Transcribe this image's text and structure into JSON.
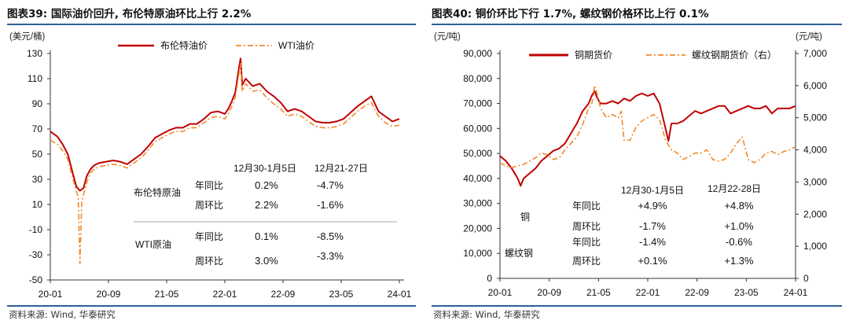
{
  "left": {
    "title": "图表39:  国际油价回升, 布伦特原油环比上行 2.2%",
    "unit": "(美元/桶)",
    "source": "资料来源: Wind, 华泰研究",
    "table": {
      "headers": [
        "12月30-1月5日",
        "12月21-27日"
      ],
      "rows": [
        {
          "group": "布伦特原油",
          "label": "年同比",
          "v1": "0.2%",
          "v2": "-4.7%"
        },
        {
          "group": "",
          "label": "周环比",
          "v1": "2.2%",
          "v2": "-1.6%"
        },
        {
          "group": "WTI原油",
          "label": "年同比",
          "v1": "0.1%",
          "v2": "-8.5%"
        },
        {
          "group": "",
          "label": "周环比",
          "v1": "3.0%",
          "v2": "-3.3%"
        }
      ]
    },
    "chart_data": {
      "type": "line",
      "x_ticks": [
        "20-01",
        "20-09",
        "21-05",
        "22-01",
        "22-09",
        "23-05",
        "24-01"
      ],
      "x_range": [
        "2020-01",
        "2024-01"
      ],
      "y_ticks": [
        "130",
        "110",
        "90",
        "70",
        "50",
        "30",
        "10",
        "-10",
        "-30",
        "-50"
      ],
      "ylim": [
        -50,
        130
      ],
      "legend_position": "top",
      "series": [
        {
          "name": "布伦特油价",
          "color": "#c00000",
          "style": "solid",
          "x": [
            0,
            0.02,
            0.035,
            0.05,
            0.065,
            0.075,
            0.085,
            0.095,
            0.105,
            0.115,
            0.125,
            0.14,
            0.16,
            0.18,
            0.2,
            0.22,
            0.24,
            0.26,
            0.28,
            0.3,
            0.32,
            0.34,
            0.36,
            0.38,
            0.4,
            0.42,
            0.44,
            0.46,
            0.48,
            0.5,
            0.51,
            0.52,
            0.53,
            0.54,
            0.545,
            0.55,
            0.56,
            0.58,
            0.6,
            0.62,
            0.64,
            0.66,
            0.68,
            0.7,
            0.72,
            0.74,
            0.76,
            0.78,
            0.8,
            0.82,
            0.84,
            0.86,
            0.88,
            0.9,
            0.92,
            0.94,
            0.96,
            0.98,
            1.0
          ],
          "y": [
            68,
            64,
            58,
            50,
            34,
            24,
            21,
            23,
            33,
            38,
            41,
            43,
            44,
            45,
            44,
            42,
            46,
            50,
            56,
            63,
            66,
            69,
            71,
            71,
            74,
            74,
            78,
            83,
            84,
            82,
            86,
            92,
            99,
            118,
            126,
            105,
            110,
            104,
            106,
            100,
            96,
            91,
            84,
            86,
            84,
            80,
            76,
            75,
            75,
            76,
            78,
            83,
            88,
            92,
            96,
            84,
            80,
            76,
            78
          ]
        },
        {
          "name": "WTI油价",
          "color": "#f28a2c",
          "style": "dashdot",
          "x": [
            0,
            0.02,
            0.035,
            0.05,
            0.065,
            0.075,
            0.08,
            0.085,
            0.09,
            0.095,
            0.105,
            0.115,
            0.125,
            0.14,
            0.16,
            0.18,
            0.2,
            0.22,
            0.24,
            0.26,
            0.28,
            0.3,
            0.32,
            0.34,
            0.36,
            0.38,
            0.4,
            0.42,
            0.44,
            0.46,
            0.48,
            0.5,
            0.51,
            0.52,
            0.53,
            0.54,
            0.545,
            0.55,
            0.56,
            0.58,
            0.6,
            0.62,
            0.64,
            0.66,
            0.68,
            0.7,
            0.72,
            0.74,
            0.76,
            0.78,
            0.8,
            0.82,
            0.84,
            0.86,
            0.88,
            0.9,
            0.92,
            0.94,
            0.96,
            0.98,
            1.0
          ],
          "y": [
            61,
            58,
            53,
            46,
            30,
            20,
            16,
            -37,
            12,
            18,
            28,
            35,
            38,
            40,
            41,
            42,
            41,
            39,
            43,
            47,
            53,
            60,
            63,
            66,
            68,
            68,
            71,
            71,
            75,
            79,
            80,
            78,
            82,
            88,
            95,
            113,
            122,
            100,
            106,
            100,
            101,
            95,
            90,
            86,
            80,
            82,
            80,
            76,
            72,
            71,
            71,
            72,
            74,
            79,
            84,
            88,
            91,
            80,
            75,
            72,
            73
          ]
        }
      ]
    }
  },
  "right": {
    "title": "图表40:  铜价环比下行 1.7%, 螺纹钢价格环比上行 0.1%",
    "unit_left": "(元/吨)",
    "unit_right": "(元/吨)",
    "source": "资料来源: Wind, 华泰研究",
    "table": {
      "headers": [
        "12月30-1月5日",
        "12月22-28日"
      ],
      "rows": [
        {
          "group": "铜",
          "label": "年同比",
          "v1": "+4.9%",
          "v2": "+4.8%"
        },
        {
          "group": "",
          "label": "周环比",
          "v1": "-1.7%",
          "v2": "+1.0%"
        },
        {
          "group": "螺纹钢",
          "label": "年同比",
          "v1": "-1.4%",
          "v2": "-0.6%"
        },
        {
          "group": "",
          "label": "周环比",
          "v1": "+0.1%",
          "v2": "+1.3%"
        }
      ]
    },
    "chart_data": {
      "type": "line",
      "x_ticks": [
        "20-01",
        "20-09",
        "21-05",
        "22-01",
        "22-09",
        "23-05",
        "24-01"
      ],
      "x_range": [
        "2020-01",
        "2024-01"
      ],
      "y_left_ticks": [
        "90,000",
        "80,000",
        "70,000",
        "60,000",
        "50,000",
        "40,000",
        "30,000",
        "20,000",
        "10,000",
        "0"
      ],
      "ylim_left": [
        0,
        90000
      ],
      "y_right_ticks": [
        "7,000",
        "6,000",
        "5,000",
        "4,000",
        "3,000",
        "2,000",
        "1,000",
        "0"
      ],
      "ylim_right": [
        0,
        7000
      ],
      "legend_position": "top",
      "series": [
        {
          "name": "铜期货价",
          "axis": "left",
          "color": "#c00000",
          "style": "solid",
          "x": [
            0,
            0.02,
            0.04,
            0.06,
            0.07,
            0.08,
            0.1,
            0.12,
            0.14,
            0.16,
            0.18,
            0.2,
            0.22,
            0.24,
            0.26,
            0.28,
            0.3,
            0.31,
            0.32,
            0.33,
            0.34,
            0.36,
            0.38,
            0.4,
            0.42,
            0.44,
            0.46,
            0.48,
            0.5,
            0.52,
            0.54,
            0.56,
            0.57,
            0.58,
            0.6,
            0.62,
            0.64,
            0.66,
            0.68,
            0.7,
            0.72,
            0.74,
            0.76,
            0.78,
            0.8,
            0.82,
            0.84,
            0.86,
            0.88,
            0.9,
            0.92,
            0.94,
            0.96,
            0.98,
            1.0
          ],
          "y": [
            49000,
            47000,
            44000,
            40000,
            37000,
            40000,
            42000,
            44000,
            47000,
            49000,
            51000,
            52000,
            54000,
            58000,
            62000,
            67000,
            70000,
            73000,
            75000,
            72000,
            70000,
            70000,
            71000,
            70000,
            72000,
            71000,
            73000,
            74000,
            73000,
            74000,
            70000,
            60000,
            55000,
            62000,
            62000,
            63000,
            65000,
            67000,
            66000,
            67000,
            68000,
            69000,
            69000,
            66000,
            67000,
            68000,
            69000,
            68000,
            68000,
            69000,
            66000,
            68000,
            68000,
            68000,
            69000
          ]
        },
        {
          "name": "螺纹钢期货价（右）",
          "axis": "right",
          "color": "#f28a2c",
          "style": "dashdot",
          "x": [
            0,
            0.02,
            0.04,
            0.06,
            0.08,
            0.1,
            0.12,
            0.14,
            0.16,
            0.18,
            0.2,
            0.22,
            0.24,
            0.26,
            0.28,
            0.3,
            0.31,
            0.32,
            0.33,
            0.34,
            0.36,
            0.38,
            0.4,
            0.41,
            0.42,
            0.44,
            0.46,
            0.48,
            0.5,
            0.52,
            0.54,
            0.56,
            0.58,
            0.6,
            0.62,
            0.64,
            0.66,
            0.68,
            0.7,
            0.72,
            0.74,
            0.76,
            0.78,
            0.8,
            0.82,
            0.84,
            0.86,
            0.88,
            0.9,
            0.92,
            0.94,
            0.96,
            0.98,
            1.0
          ],
          "y": [
            3600,
            3500,
            3450,
            3500,
            3550,
            3650,
            3750,
            3900,
            3850,
            3700,
            3750,
            4000,
            4200,
            4400,
            4800,
            5300,
            5400,
            6000,
            5700,
            5300,
            5000,
            5100,
            5000,
            5200,
            4300,
            4300,
            4700,
            4900,
            5000,
            5100,
            4950,
            4300,
            4000,
            3900,
            3700,
            3800,
            3900,
            3900,
            4000,
            3700,
            3650,
            3700,
            3900,
            4200,
            4400,
            3700,
            3600,
            3700,
            3900,
            3950,
            3850,
            3950,
            4000,
            4100
          ]
        }
      ]
    }
  }
}
